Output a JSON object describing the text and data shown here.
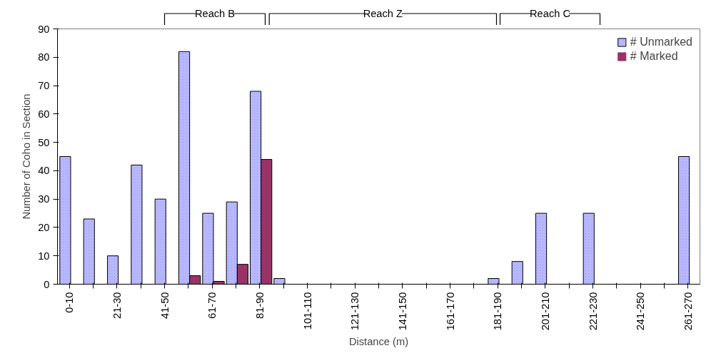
{
  "chart_data": {
    "type": "bar",
    "xlabel": "Distance (m)",
    "ylabel": "Number of Coho in Section",
    "categories": [
      "0-10",
      null,
      "21-30",
      null,
      "41-50",
      null,
      "61-70",
      null,
      "81-90",
      null,
      "101-110",
      null,
      "121-130",
      null,
      "141-150",
      null,
      "161-170",
      null,
      "181-190",
      null,
      "201-210",
      null,
      "221-230",
      null,
      "241-250",
      null,
      "261-270"
    ],
    "series": [
      {
        "name": "# Unmarked",
        "color": "#9999ff",
        "values": [
          45,
          23,
          10,
          42,
          30,
          82,
          25,
          29,
          68,
          2,
          0,
          0,
          0,
          0,
          0,
          0,
          0,
          0,
          2,
          8,
          25,
          0,
          25,
          0,
          0,
          0,
          45
        ]
      },
      {
        "name": "# Marked",
        "color": "#993366",
        "values": [
          0,
          0,
          0,
          0,
          0,
          3,
          1,
          7,
          44,
          0,
          0,
          0,
          0,
          0,
          0,
          0,
          0,
          0,
          0,
          0,
          0,
          0,
          0,
          0,
          0,
          0,
          0
        ]
      }
    ],
    "ylim": [
      0,
      90
    ],
    "yticks": [
      0,
      10,
      20,
      30,
      40,
      50,
      60,
      70,
      80,
      90
    ],
    "grid": false,
    "legend": "top right",
    "annotations": [
      "Reach B",
      "Reach Z",
      "Reach C"
    ]
  }
}
